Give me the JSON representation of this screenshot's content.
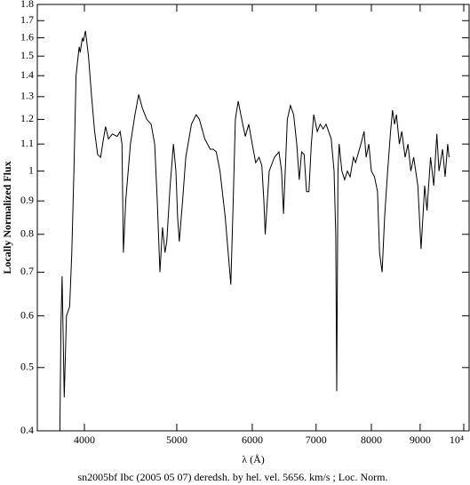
{
  "chart_data": {
    "type": "line",
    "xlabel": "λ (Å)",
    "ylabel": "Locally Normalized Flux",
    "caption": "sn2005bf Ibc (2005 05 07) deredsh. by hel. vel.  5656. km/s ;  Loc. Norm.",
    "xscale": "log",
    "yscale": "log",
    "xlim": [
      3570,
      10130
    ],
    "ylim": [
      0.4,
      1.8
    ],
    "xticks": [
      4000,
      5000,
      6000,
      7000,
      8000,
      9000,
      {
        "value": 10000,
        "label": "10⁴"
      }
    ],
    "yticks": [
      0.4,
      0.5,
      0.6,
      0.7,
      0.8,
      0.9,
      1,
      1.1,
      1.2,
      1.3,
      1.4,
      1.5,
      1.6,
      1.7,
      1.8
    ],
    "series": [
      {
        "color": "#000000",
        "x": [
          3770,
          3780,
          3790,
          3810,
          3830,
          3860,
          3880,
          3900,
          3920,
          3950,
          3960,
          3980,
          3990,
          4010,
          4040,
          4070,
          4100,
          4130,
          4160,
          4180,
          4210,
          4240,
          4280,
          4330,
          4360,
          4380,
          4395,
          4420,
          4470,
          4520,
          4560,
          4600,
          4650,
          4700,
          4740,
          4770,
          4800,
          4830,
          4860,
          4880,
          4920,
          4960,
          4990,
          5010,
          5030,
          5070,
          5110,
          5180,
          5240,
          5280,
          5350,
          5420,
          5460,
          5500,
          5550,
          5620,
          5697,
          5730,
          5760,
          5800,
          5850,
          5900,
          5950,
          6000,
          6050,
          6100,
          6140,
          6170,
          6190,
          6250,
          6330,
          6400,
          6440,
          6470,
          6530,
          6580,
          6630,
          6680,
          6720,
          6760,
          6800,
          6840,
          6880,
          6920,
          6960,
          7020,
          7070,
          7120,
          7170,
          7260,
          7310,
          7340,
          7357,
          7380,
          7400,
          7450,
          7500,
          7550,
          7600,
          7660,
          7700,
          7800,
          7860,
          7900,
          7950,
          8000,
          8060,
          8120,
          8160,
          8210,
          8260,
          8320,
          8380,
          8420,
          8460,
          8500,
          8560,
          8610,
          8680,
          8740,
          8800,
          8860,
          8950,
          9020,
          9060,
          9100,
          9150,
          9230,
          9300,
          9370,
          9420,
          9500,
          9560,
          9620,
          9650
        ],
        "values": [
          0.4,
          0.58,
          0.69,
          0.45,
          0.6,
          0.62,
          0.75,
          1.0,
          1.4,
          1.55,
          1.52,
          1.6,
          1.58,
          1.64,
          1.5,
          1.3,
          1.15,
          1.06,
          1.05,
          1.1,
          1.17,
          1.12,
          1.14,
          1.13,
          1.15,
          1.1,
          0.75,
          0.9,
          1.1,
          1.22,
          1.31,
          1.25,
          1.2,
          1.18,
          1.1,
          0.9,
          0.7,
          0.82,
          0.75,
          0.78,
          0.95,
          1.1,
          1.0,
          0.85,
          0.78,
          0.9,
          1.05,
          1.18,
          1.22,
          1.2,
          1.12,
          1.08,
          1.08,
          1.07,
          1.0,
          0.85,
          0.67,
          0.9,
          1.2,
          1.28,
          1.2,
          1.13,
          1.18,
          1.1,
          1.03,
          1.05,
          1.02,
          0.9,
          0.8,
          1.0,
          1.05,
          1.07,
          1.0,
          0.86,
          1.2,
          1.26,
          1.22,
          1.1,
          0.97,
          1.07,
          1.06,
          0.93,
          0.93,
          1.1,
          1.22,
          1.15,
          1.18,
          1.16,
          1.18,
          1.12,
          1.0,
          0.8,
          0.46,
          1.0,
          1.1,
          1.0,
          0.97,
          1.0,
          0.98,
          1.05,
          1.03,
          1.1,
          1.15,
          1.05,
          1.1,
          1.0,
          0.98,
          0.93,
          0.75,
          0.7,
          0.85,
          1.0,
          1.15,
          1.24,
          1.18,
          1.22,
          1.1,
          1.15,
          1.05,
          1.1,
          1.0,
          1.05,
          0.95,
          0.76,
          0.85,
          0.95,
          0.87,
          1.05,
          0.95,
          1.14,
          1.0,
          1.08,
          0.98,
          1.1,
          1.05
        ]
      }
    ]
  }
}
